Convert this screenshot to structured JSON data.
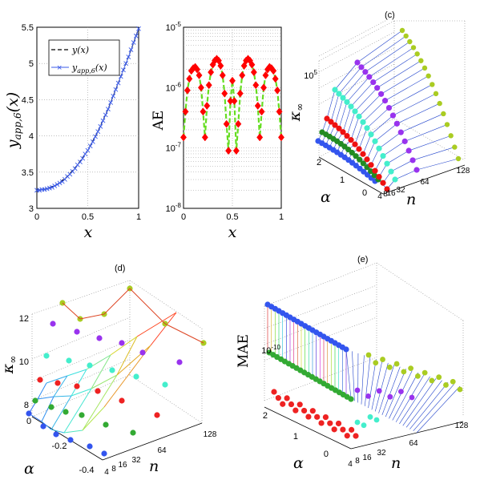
{
  "chart_data": [
    {
      "type": "line",
      "panel": "a",
      "xlabel": "x",
      "ylabel": "y_app,6(x)",
      "xlim": [
        0,
        1
      ],
      "ylim": [
        3,
        5.5
      ],
      "xticks": [
        "0",
        "0.5",
        "1"
      ],
      "yticks": [
        "3",
        "3.5",
        "4",
        "4.5",
        "5",
        "5.5"
      ],
      "grid": true,
      "legend_position": "top-left",
      "legend": [
        "y(x)",
        "y_app,6(x)"
      ],
      "series": [
        {
          "name": "y(x)",
          "style": "dashed-black",
          "x": [
            0,
            0.1,
            0.2,
            0.3,
            0.4,
            0.5,
            0.6,
            0.7,
            0.8,
            0.9,
            1
          ],
          "values": [
            3.25,
            3.27,
            3.33,
            3.44,
            3.6,
            3.8,
            4.06,
            4.37,
            4.73,
            5.09,
            5.48
          ]
        },
        {
          "name": "y_app,6(x)",
          "style": "blue-x",
          "x": [
            0,
            0.025,
            0.05,
            0.075,
            0.1,
            0.125,
            0.15,
            0.175,
            0.2,
            0.225,
            0.25,
            0.275,
            0.3,
            0.325,
            0.35,
            0.375,
            0.4,
            0.425,
            0.45,
            0.475,
            0.5,
            0.525,
            0.55,
            0.575,
            0.6,
            0.625,
            0.65,
            0.675,
            0.7,
            0.725,
            0.75,
            0.775,
            0.8,
            0.825,
            0.85,
            0.875,
            0.9,
            0.925,
            0.95,
            0.975,
            1
          ],
          "values": [
            3.25,
            3.25,
            3.26,
            3.26,
            3.27,
            3.28,
            3.29,
            3.31,
            3.33,
            3.35,
            3.37,
            3.4,
            3.44,
            3.47,
            3.51,
            3.55,
            3.6,
            3.64,
            3.69,
            3.75,
            3.8,
            3.86,
            3.92,
            3.99,
            4.06,
            4.13,
            4.21,
            4.29,
            4.37,
            4.46,
            4.55,
            4.64,
            4.73,
            4.82,
            4.91,
            5.0,
            5.09,
            5.19,
            5.29,
            5.38,
            5.48
          ]
        }
      ]
    },
    {
      "type": "scatter",
      "panel": "b",
      "xlabel": "x",
      "ylabel": "AE",
      "xlim": [
        0,
        1
      ],
      "ylim": [
        1e-08,
        1e-05
      ],
      "yscale": "log",
      "xticks": [
        "0",
        "0.5",
        "1"
      ],
      "yticks": [
        "10^-8",
        "10^-7",
        "10^-6",
        "10^-5"
      ],
      "grid": true,
      "colors": {
        "marker": "#ff0000",
        "line": "#66dd22"
      },
      "x": [
        0.0,
        0.02,
        0.04,
        0.06,
        0.08,
        0.1,
        0.12,
        0.14,
        0.16,
        0.18,
        0.2,
        0.22,
        0.24,
        0.26,
        0.28,
        0.3,
        0.32,
        0.34,
        0.36,
        0.38,
        0.4,
        0.42,
        0.44,
        0.46,
        0.48,
        0.5,
        0.52,
        0.54,
        0.56,
        0.58,
        0.6,
        0.62,
        0.64,
        0.66,
        0.68,
        0.7,
        0.72,
        0.74,
        0.76,
        0.78,
        0.8,
        0.82,
        0.84,
        0.86,
        0.88,
        0.9,
        0.92,
        0.94,
        0.96,
        0.98,
        1.0
      ],
      "values": [
        1.5e-07,
        4e-07,
        9e-07,
        1.4e-06,
        1.9e-06,
        2.1e-06,
        2.2e-06,
        2e-06,
        1.6e-06,
        1e-06,
        4e-07,
        1.5e-07,
        5e-07,
        1.1e-06,
        1.8e-06,
        2.4e-06,
        2.8e-06,
        3e-06,
        2.8e-06,
        2.3e-06,
        1.6e-06,
        8e-07,
        2.5e-07,
        9e-08,
        6e-07,
        1.3e-06,
        6e-07,
        9e-08,
        2.5e-07,
        8e-07,
        1.6e-06,
        2.3e-06,
        2.8e-06,
        3e-06,
        2.8e-06,
        2.4e-06,
        1.8e-06,
        1.1e-06,
        5e-07,
        1.5e-07,
        4e-07,
        1e-06,
        1.6e-06,
        2e-06,
        2.2e-06,
        2.1e-06,
        1.9e-06,
        1.4e-06,
        9e-07,
        4e-07,
        1.5e-07
      ]
    },
    {
      "type": "surface-3d",
      "panel": "c",
      "title": "(c)",
      "xlabel": "n",
      "ylabel": "α",
      "zlabel": "κ∞",
      "n_ticks": [
        "4",
        "8",
        "16",
        "32",
        "64",
        "128"
      ],
      "alpha_ticks": [
        "0",
        "1",
        "2"
      ],
      "z_ticks": [
        "10^5"
      ],
      "grid": true,
      "series": [
        {
          "name": "blue",
          "color": "#3355ee"
        },
        {
          "name": "green",
          "color": "#228b22"
        },
        {
          "name": "red",
          "color": "#ee1111"
        },
        {
          "name": "cyan",
          "color": "#44eecc"
        },
        {
          "name": "purple",
          "color": "#9933ee"
        },
        {
          "name": "yellowgreen",
          "color": "#aacc22"
        }
      ]
    },
    {
      "type": "surface-3d",
      "panel": "d",
      "title": "(d)",
      "xlabel": "n",
      "ylabel": "α",
      "zlabel": "κ∞",
      "n_ticks": [
        "4",
        "8",
        "16",
        "32",
        "64",
        "128"
      ],
      "alpha_ticks": [
        "0",
        "-0.2",
        "-0.4"
      ],
      "z_ticks": [
        "8",
        "10",
        "12"
      ],
      "grid": true,
      "values": [
        [
          7.3,
          7.6,
          8.0,
          8.6,
          9.6,
          11.0
        ],
        [
          7.6,
          8.0,
          8.5,
          9.3,
          10.6,
          12.1
        ],
        [
          7.9,
          8.4,
          9.1,
          10.1,
          11.6,
          13.2
        ]
      ]
    },
    {
      "type": "surface-3d",
      "panel": "e",
      "title": "(e)",
      "xlabel": "n",
      "ylabel": "α",
      "zlabel": "MAE",
      "n_ticks": [
        "4",
        "8",
        "16",
        "32",
        "64",
        "128"
      ],
      "alpha_ticks": [
        "0",
        "1",
        "2"
      ],
      "z_ticks": [
        "10^-10"
      ],
      "grid": true
    }
  ]
}
